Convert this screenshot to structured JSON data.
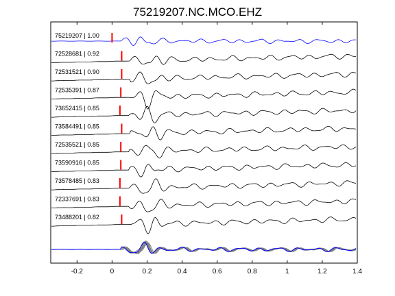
{
  "chart_data": {
    "type": "line",
    "title": "75219207.NC.MCO.EHZ",
    "xlabel": "",
    "ylabel": "",
    "xlim": [
      -0.35,
      1.4
    ],
    "xticks": [
      "-0.2",
      "0",
      "0.2",
      "0.4",
      "0.6",
      "0.8",
      "1",
      "1.2",
      "1.4"
    ],
    "xtick_values": [
      -0.2,
      0,
      0.2,
      0.4,
      0.6,
      0.8,
      1.0,
      1.2,
      1.4
    ],
    "grid": false,
    "colors": {
      "reference": "#0000ff",
      "correlated": "#000000",
      "stack": "#808080",
      "pick": "#ff0000"
    },
    "series": [
      {
        "name": "75219207 | 1.00",
        "pick_time": 0.0,
        "color": "#0000ff"
      },
      {
        "name": "72528681 | 0.92",
        "pick_time": 0.055,
        "color": "#000000"
      },
      {
        "name": "72531521 | 0.90",
        "pick_time": 0.055,
        "color": "#000000"
      },
      {
        "name": "72535391 | 0.87",
        "pick_time": 0.05,
        "color": "#000000"
      },
      {
        "name": "73652415 | 0.85",
        "pick_time": 0.045,
        "color": "#000000"
      },
      {
        "name": "73584491 | 0.85",
        "pick_time": 0.055,
        "color": "#000000"
      },
      {
        "name": "72535521 | 0.85",
        "pick_time": 0.05,
        "color": "#000000"
      },
      {
        "name": "73590916 | 0.85",
        "pick_time": 0.05,
        "color": "#000000"
      },
      {
        "name": "73578485 | 0.83",
        "pick_time": 0.045,
        "color": "#000000"
      },
      {
        "name": "72337691 | 0.83",
        "pick_time": 0.045,
        "color": "#000000"
      },
      {
        "name": "73488201 | 0.82",
        "pick_time": 0.055,
        "color": "#000000"
      }
    ],
    "stack_panel": true
  }
}
